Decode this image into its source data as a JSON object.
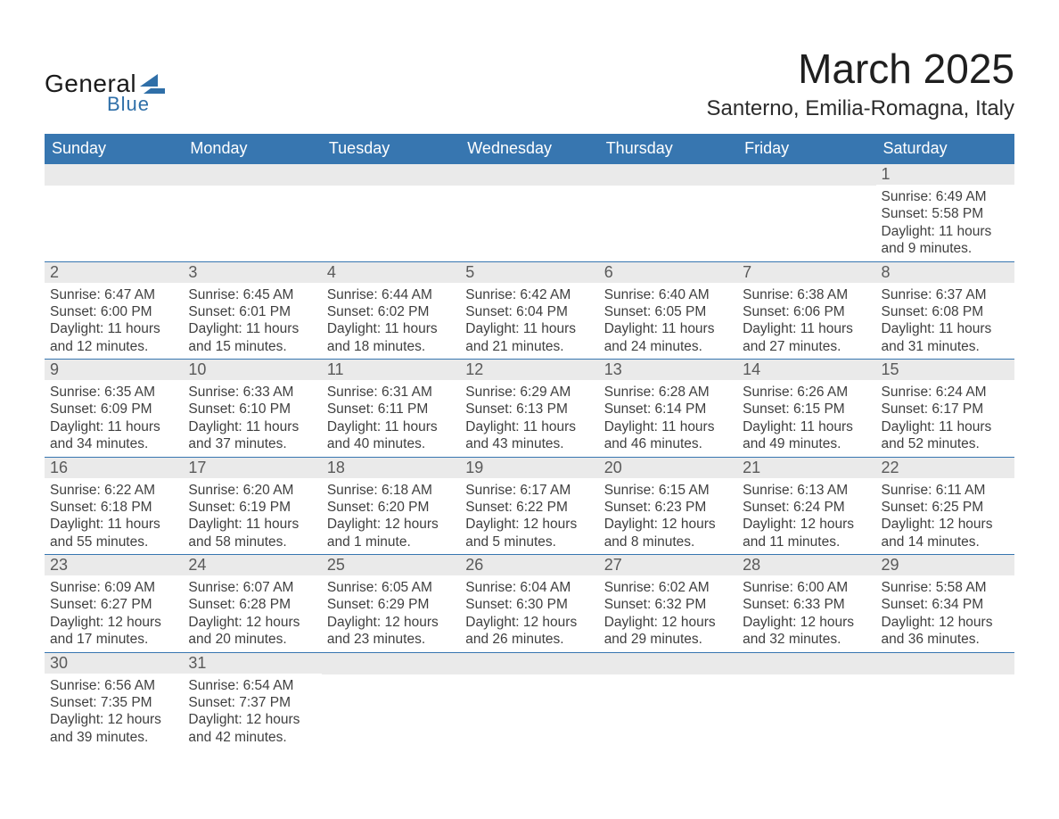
{
  "logo": {
    "text_top": "General",
    "text_bottom": "Blue",
    "shape_color": "#2f6fa8"
  },
  "title": {
    "month": "March 2025",
    "location": "Santerno, Emilia-Romagna, Italy"
  },
  "colors": {
    "header_bg": "#3776b0",
    "header_text": "#ffffff",
    "row_divider": "#3776b0",
    "daynum_bg": "#eaeaea",
    "body_text": "#3f3f3f"
  },
  "dow": [
    "Sunday",
    "Monday",
    "Tuesday",
    "Wednesday",
    "Thursday",
    "Friday",
    "Saturday"
  ],
  "weeks": [
    [
      {},
      {},
      {},
      {},
      {},
      {},
      {
        "n": "1",
        "sunrise": "Sunrise: 6:49 AM",
        "sunset": "Sunset: 5:58 PM",
        "daylight": "Daylight: 11 hours and 9 minutes."
      }
    ],
    [
      {
        "n": "2",
        "sunrise": "Sunrise: 6:47 AM",
        "sunset": "Sunset: 6:00 PM",
        "daylight": "Daylight: 11 hours and 12 minutes."
      },
      {
        "n": "3",
        "sunrise": "Sunrise: 6:45 AM",
        "sunset": "Sunset: 6:01 PM",
        "daylight": "Daylight: 11 hours and 15 minutes."
      },
      {
        "n": "4",
        "sunrise": "Sunrise: 6:44 AM",
        "sunset": "Sunset: 6:02 PM",
        "daylight": "Daylight: 11 hours and 18 minutes."
      },
      {
        "n": "5",
        "sunrise": "Sunrise: 6:42 AM",
        "sunset": "Sunset: 6:04 PM",
        "daylight": "Daylight: 11 hours and 21 minutes."
      },
      {
        "n": "6",
        "sunrise": "Sunrise: 6:40 AM",
        "sunset": "Sunset: 6:05 PM",
        "daylight": "Daylight: 11 hours and 24 minutes."
      },
      {
        "n": "7",
        "sunrise": "Sunrise: 6:38 AM",
        "sunset": "Sunset: 6:06 PM",
        "daylight": "Daylight: 11 hours and 27 minutes."
      },
      {
        "n": "8",
        "sunrise": "Sunrise: 6:37 AM",
        "sunset": "Sunset: 6:08 PM",
        "daylight": "Daylight: 11 hours and 31 minutes."
      }
    ],
    [
      {
        "n": "9",
        "sunrise": "Sunrise: 6:35 AM",
        "sunset": "Sunset: 6:09 PM",
        "daylight": "Daylight: 11 hours and 34 minutes."
      },
      {
        "n": "10",
        "sunrise": "Sunrise: 6:33 AM",
        "sunset": "Sunset: 6:10 PM",
        "daylight": "Daylight: 11 hours and 37 minutes."
      },
      {
        "n": "11",
        "sunrise": "Sunrise: 6:31 AM",
        "sunset": "Sunset: 6:11 PM",
        "daylight": "Daylight: 11 hours and 40 minutes."
      },
      {
        "n": "12",
        "sunrise": "Sunrise: 6:29 AM",
        "sunset": "Sunset: 6:13 PM",
        "daylight": "Daylight: 11 hours and 43 minutes."
      },
      {
        "n": "13",
        "sunrise": "Sunrise: 6:28 AM",
        "sunset": "Sunset: 6:14 PM",
        "daylight": "Daylight: 11 hours and 46 minutes."
      },
      {
        "n": "14",
        "sunrise": "Sunrise: 6:26 AM",
        "sunset": "Sunset: 6:15 PM",
        "daylight": "Daylight: 11 hours and 49 minutes."
      },
      {
        "n": "15",
        "sunrise": "Sunrise: 6:24 AM",
        "sunset": "Sunset: 6:17 PM",
        "daylight": "Daylight: 11 hours and 52 minutes."
      }
    ],
    [
      {
        "n": "16",
        "sunrise": "Sunrise: 6:22 AM",
        "sunset": "Sunset: 6:18 PM",
        "daylight": "Daylight: 11 hours and 55 minutes."
      },
      {
        "n": "17",
        "sunrise": "Sunrise: 6:20 AM",
        "sunset": "Sunset: 6:19 PM",
        "daylight": "Daylight: 11 hours and 58 minutes."
      },
      {
        "n": "18",
        "sunrise": "Sunrise: 6:18 AM",
        "sunset": "Sunset: 6:20 PM",
        "daylight": "Daylight: 12 hours and 1 minute."
      },
      {
        "n": "19",
        "sunrise": "Sunrise: 6:17 AM",
        "sunset": "Sunset: 6:22 PM",
        "daylight": "Daylight: 12 hours and 5 minutes."
      },
      {
        "n": "20",
        "sunrise": "Sunrise: 6:15 AM",
        "sunset": "Sunset: 6:23 PM",
        "daylight": "Daylight: 12 hours and 8 minutes."
      },
      {
        "n": "21",
        "sunrise": "Sunrise: 6:13 AM",
        "sunset": "Sunset: 6:24 PM",
        "daylight": "Daylight: 12 hours and 11 minutes."
      },
      {
        "n": "22",
        "sunrise": "Sunrise: 6:11 AM",
        "sunset": "Sunset: 6:25 PM",
        "daylight": "Daylight: 12 hours and 14 minutes."
      }
    ],
    [
      {
        "n": "23",
        "sunrise": "Sunrise: 6:09 AM",
        "sunset": "Sunset: 6:27 PM",
        "daylight": "Daylight: 12 hours and 17 minutes."
      },
      {
        "n": "24",
        "sunrise": "Sunrise: 6:07 AM",
        "sunset": "Sunset: 6:28 PM",
        "daylight": "Daylight: 12 hours and 20 minutes."
      },
      {
        "n": "25",
        "sunrise": "Sunrise: 6:05 AM",
        "sunset": "Sunset: 6:29 PM",
        "daylight": "Daylight: 12 hours and 23 minutes."
      },
      {
        "n": "26",
        "sunrise": "Sunrise: 6:04 AM",
        "sunset": "Sunset: 6:30 PM",
        "daylight": "Daylight: 12 hours and 26 minutes."
      },
      {
        "n": "27",
        "sunrise": "Sunrise: 6:02 AM",
        "sunset": "Sunset: 6:32 PM",
        "daylight": "Daylight: 12 hours and 29 minutes."
      },
      {
        "n": "28",
        "sunrise": "Sunrise: 6:00 AM",
        "sunset": "Sunset: 6:33 PM",
        "daylight": "Daylight: 12 hours and 32 minutes."
      },
      {
        "n": "29",
        "sunrise": "Sunrise: 5:58 AM",
        "sunset": "Sunset: 6:34 PM",
        "daylight": "Daylight: 12 hours and 36 minutes."
      }
    ],
    [
      {
        "n": "30",
        "sunrise": "Sunrise: 6:56 AM",
        "sunset": "Sunset: 7:35 PM",
        "daylight": "Daylight: 12 hours and 39 minutes."
      },
      {
        "n": "31",
        "sunrise": "Sunrise: 6:54 AM",
        "sunset": "Sunset: 7:37 PM",
        "daylight": "Daylight: 12 hours and 42 minutes."
      },
      {},
      {},
      {},
      {},
      {}
    ]
  ]
}
